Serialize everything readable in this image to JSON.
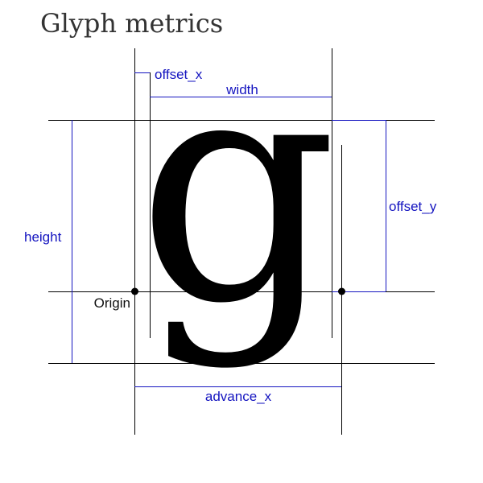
{
  "title": "Glyph metrics",
  "glyph": {
    "character": "g"
  },
  "labels": {
    "offset_x": "offset_x",
    "width": "width",
    "offset_y": "offset_y",
    "height": "height",
    "origin": "Origin",
    "advance_x": "advance_x"
  },
  "colors": {
    "background": "#ffffff",
    "title": "#333333",
    "guide_line": "#000000",
    "metric_line": "#1515c0",
    "metric_text": "#1515c0",
    "origin_text": "#111111",
    "glyph_fill": "#000000"
  }
}
